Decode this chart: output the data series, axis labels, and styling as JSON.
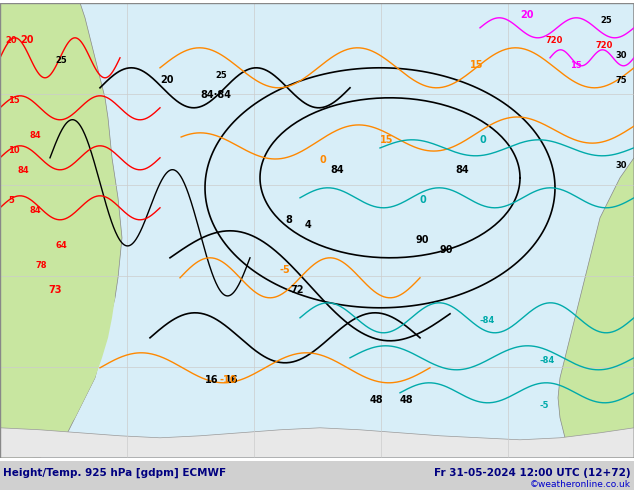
{
  "title_left": "Height/Temp. 925 hPa [gdpm] ECMWF",
  "title_right": "Fr 31-05-2024 12:00 UTC (12+72)",
  "watermark": "©weatheronline.co.uk",
  "background_land": "#c8e6a0",
  "background_ocean": "#e8f4f8",
  "grid_color": "#cccccc",
  "border_color": "#999999",
  "fig_bg": "#ffffff",
  "bottom_bar_color": "#d0d0d0",
  "text_color_title": "#000080",
  "text_color_watermark": "#0000aa",
  "contour_colors": {
    "black": "#000000",
    "orange": "#ff8800",
    "red": "#ff0000",
    "cyan": "#00cccc",
    "magenta": "#ff00ff",
    "pink": "#ff69b4"
  },
  "label_fontsize": 7,
  "title_fontsize": 8,
  "watermark_fontsize": 7
}
